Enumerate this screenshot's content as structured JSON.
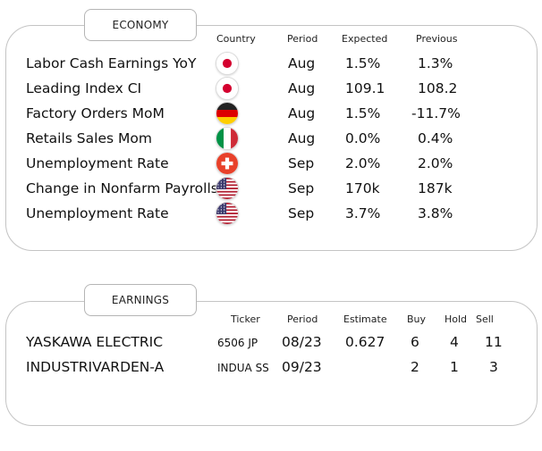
{
  "economy": {
    "title": "ECONOMY",
    "headers": {
      "country": "Country",
      "period": "Period",
      "expected": "Expected",
      "previous": "Previous"
    },
    "rows": [
      {
        "name": "Labor Cash Earnings YoY",
        "country": "japan-flag-icon",
        "period": "Aug",
        "expected": "1.5%",
        "previous": "1.3%"
      },
      {
        "name": "Leading Index CI",
        "country": "japan-flag-icon",
        "period": "Aug",
        "expected": "109.1",
        "previous": "108.2"
      },
      {
        "name": "Factory Orders MoM",
        "country": "germany-flag-icon",
        "period": "Aug",
        "expected": "1.5%",
        "previous": "-11.7%"
      },
      {
        "name": "Retails Sales Mom",
        "country": "italy-flag-icon",
        "period": "Aug",
        "expected": "0.0%",
        "previous": "0.4%"
      },
      {
        "name": "Unemployment Rate",
        "country": "switzerland-flag-icon",
        "period": "Sep",
        "expected": "2.0%",
        "previous": "2.0%"
      },
      {
        "name": "Change in Nonfarm Payrolls",
        "country": "usa-flag-icon",
        "period": "Sep",
        "expected": "170k",
        "previous": "187k"
      },
      {
        "name": "Unemployment Rate",
        "country": "usa-flag-icon",
        "period": "Sep",
        "expected": "3.7%",
        "previous": "3.8%"
      }
    ]
  },
  "earnings": {
    "title": "EARNINGS",
    "headers": {
      "ticker": "Ticker",
      "period": "Period",
      "estimate": "Estimate",
      "buy": "Buy",
      "hold": "Hold",
      "sell": "Sell"
    },
    "rows": [
      {
        "name": "YASKAWA ELECTRIC",
        "ticker": "6506 JP",
        "period": "08/23",
        "estimate": "0.627",
        "buy": "6",
        "hold": "4",
        "sell": "11"
      },
      {
        "name": "INDUSTRIVARDEN-A",
        "ticker": "INDUA SS",
        "period": "09/23",
        "estimate": "",
        "buy": "2",
        "hold": "1",
        "sell": "3"
      }
    ]
  },
  "colors": {
    "panel_border": "#c4c4c4",
    "japan_red": "#d4002f",
    "germany_black": "#222222",
    "germany_red": "#dd0000",
    "germany_gold": "#ffce00",
    "italy_green": "#009246",
    "italy_red": "#ce2b37",
    "swiss_red": "#e8412a",
    "usa_red": "#b22234",
    "usa_blue": "#3c3b6e"
  }
}
